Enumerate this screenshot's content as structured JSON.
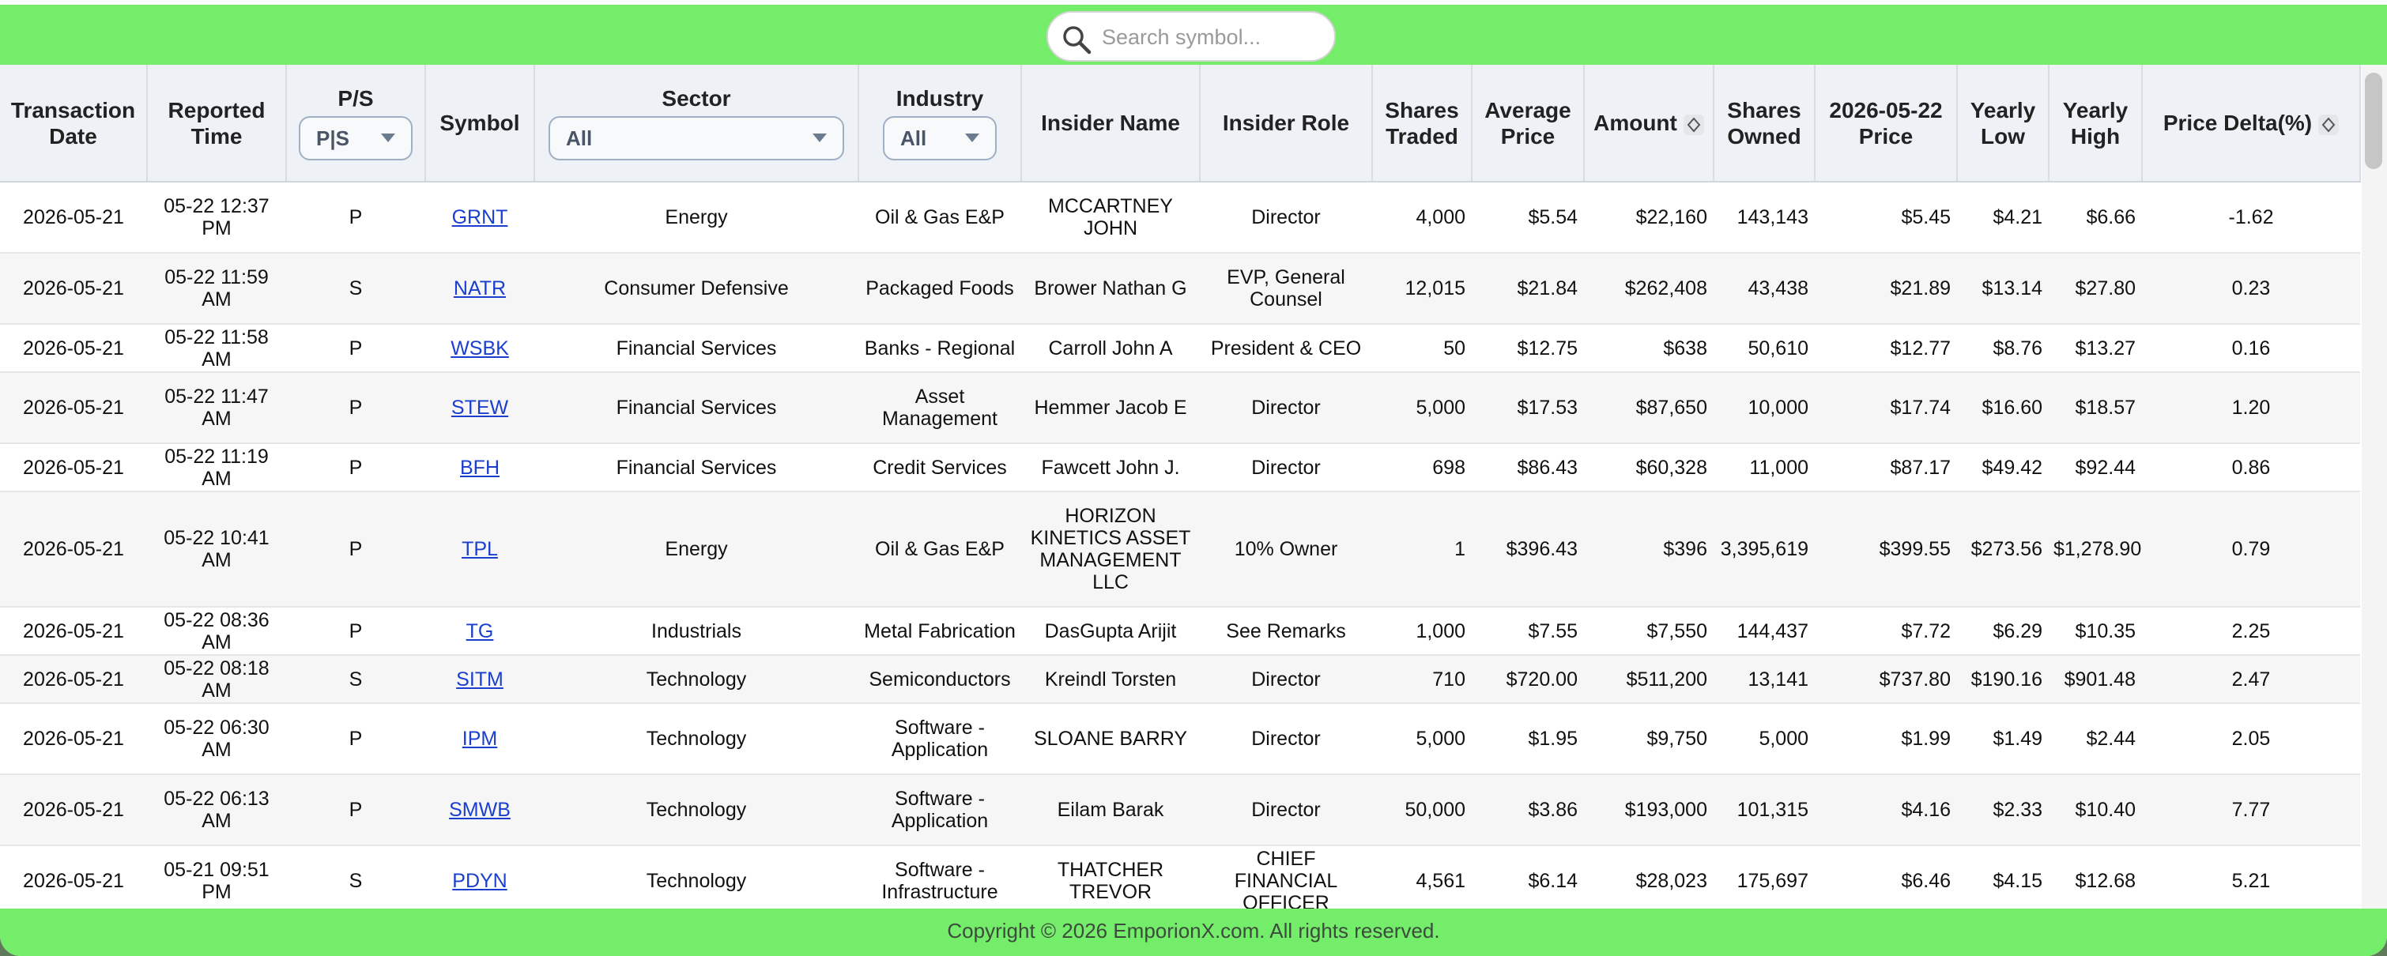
{
  "search": {
    "placeholder": "Search symbol...",
    "value": ""
  },
  "columns": {
    "transaction_date": "Transaction Date",
    "reported_time": "Reported Time",
    "ps": "P/S",
    "symbol": "Symbol",
    "sector": "Sector",
    "industry": "Industry",
    "insider_name": "Insider Name",
    "insider_role": "Insider Role",
    "shares_traded": "Shares Traded",
    "average_price": "Average Price",
    "amount": "Amount",
    "shares_owned": "Shares Owned",
    "date_price": "2026-05-22 Price",
    "yearly_low": "Yearly Low",
    "yearly_high": "Yearly High",
    "price_delta": "Price Delta(%)"
  },
  "filters": {
    "ps": "P|S",
    "sector": "All",
    "industry": "All"
  },
  "icons": {
    "search": "search-icon",
    "sort": "sort-icon",
    "caret": "chevron-down-icon"
  },
  "colors": {
    "accent_green": "#74ee6a",
    "link_blue": "#1a3fcf",
    "header_bg": "#eef1f6"
  },
  "rows": [
    {
      "date": "2026-05-21",
      "time": "05-22 12:37 PM",
      "ps": "P",
      "symbol": "GRNT",
      "sector": "Energy",
      "industry": "Oil & Gas E&P",
      "name": "MCCARTNEY JOHN",
      "role": "Director",
      "traded": "4,000",
      "avg": "$5.54",
      "amount": "$22,160",
      "owned": "143,143",
      "price": "$5.45",
      "low": "$4.21",
      "high": "$6.66",
      "delta": "-1.62"
    },
    {
      "date": "2026-05-21",
      "time": "05-22 11:59 AM",
      "ps": "S",
      "symbol": "NATR",
      "sector": "Consumer Defensive",
      "industry": "Packaged Foods",
      "name": "Brower Nathan G",
      "role": "EVP, General Counsel",
      "traded": "12,015",
      "avg": "$21.84",
      "amount": "$262,408",
      "owned": "43,438",
      "price": "$21.89",
      "low": "$13.14",
      "high": "$27.80",
      "delta": "0.23"
    },
    {
      "date": "2026-05-21",
      "time": "05-22 11:58 AM",
      "ps": "P",
      "symbol": "WSBK",
      "sector": "Financial Services",
      "industry": "Banks - Regional",
      "name": "Carroll John A",
      "role": "President & CEO",
      "traded": "50",
      "avg": "$12.75",
      "amount": "$638",
      "owned": "50,610",
      "price": "$12.77",
      "low": "$8.76",
      "high": "$13.27",
      "delta": "0.16"
    },
    {
      "date": "2026-05-21",
      "time": "05-22 11:47 AM",
      "ps": "P",
      "symbol": "STEW",
      "sector": "Financial Services",
      "industry": "Asset Management",
      "name": "Hemmer Jacob E",
      "role": "Director",
      "traded": "5,000",
      "avg": "$17.53",
      "amount": "$87,650",
      "owned": "10,000",
      "price": "$17.74",
      "low": "$16.60",
      "high": "$18.57",
      "delta": "1.20"
    },
    {
      "date": "2026-05-21",
      "time": "05-22 11:19 AM",
      "ps": "P",
      "symbol": "BFH",
      "sector": "Financial Services",
      "industry": "Credit Services",
      "name": "Fawcett John J.",
      "role": "Director",
      "traded": "698",
      "avg": "$86.43",
      "amount": "$60,328",
      "owned": "11,000",
      "price": "$87.17",
      "low": "$49.42",
      "high": "$92.44",
      "delta": "0.86"
    },
    {
      "date": "2026-05-21",
      "time": "05-22 10:41 AM",
      "ps": "P",
      "symbol": "TPL",
      "sector": "Energy",
      "industry": "Oil & Gas E&P",
      "name": "HORIZON KINETICS ASSET MANAGEMENT LLC",
      "role": "10% Owner",
      "traded": "1",
      "avg": "$396.43",
      "amount": "$396",
      "owned": "3,395,619",
      "price": "$399.55",
      "low": "$273.56",
      "high": "$1,278.90",
      "delta": "0.79"
    },
    {
      "date": "2026-05-21",
      "time": "05-22 08:36 AM",
      "ps": "P",
      "symbol": "TG",
      "sector": "Industrials",
      "industry": "Metal Fabrication",
      "name": "DasGupta Arijit",
      "role": "See Remarks",
      "traded": "1,000",
      "avg": "$7.55",
      "amount": "$7,550",
      "owned": "144,437",
      "price": "$7.72",
      "low": "$6.29",
      "high": "$10.35",
      "delta": "2.25"
    },
    {
      "date": "2026-05-21",
      "time": "05-22 08:18 AM",
      "ps": "S",
      "symbol": "SITM",
      "sector": "Technology",
      "industry": "Semiconductors",
      "name": "Kreindl Torsten",
      "role": "Director",
      "traded": "710",
      "avg": "$720.00",
      "amount": "$511,200",
      "owned": "13,141",
      "price": "$737.80",
      "low": "$190.16",
      "high": "$901.48",
      "delta": "2.47"
    },
    {
      "date": "2026-05-21",
      "time": "05-22 06:30 AM",
      "ps": "P",
      "symbol": "IPM",
      "sector": "Technology",
      "industry": "Software - Application",
      "name": "SLOANE BARRY",
      "role": "Director",
      "traded": "5,000",
      "avg": "$1.95",
      "amount": "$9,750",
      "owned": "5,000",
      "price": "$1.99",
      "low": "$1.49",
      "high": "$2.44",
      "delta": "2.05"
    },
    {
      "date": "2026-05-21",
      "time": "05-22 06:13 AM",
      "ps": "P",
      "symbol": "SMWB",
      "sector": "Technology",
      "industry": "Software - Application",
      "name": "Eilam Barak",
      "role": "Director",
      "traded": "50,000",
      "avg": "$3.86",
      "amount": "$193,000",
      "owned": "101,315",
      "price": "$4.16",
      "low": "$2.33",
      "high": "$10.40",
      "delta": "7.77"
    },
    {
      "date": "2026-05-21",
      "time": "05-21 09:51 PM",
      "ps": "S",
      "symbol": "PDYN",
      "sector": "Technology",
      "industry": "Software - Infrastructure",
      "name": "THATCHER TREVOR",
      "role": "CHIEF FINANCIAL OFFICER",
      "traded": "4,561",
      "avg": "$6.14",
      "amount": "$28,023",
      "owned": "175,697",
      "price": "$6.46",
      "low": "$4.15",
      "high": "$12.68",
      "delta": "5.21"
    }
  ],
  "footer": {
    "text": "Copyright © 2026 EmporionX.com. All rights reserved."
  }
}
